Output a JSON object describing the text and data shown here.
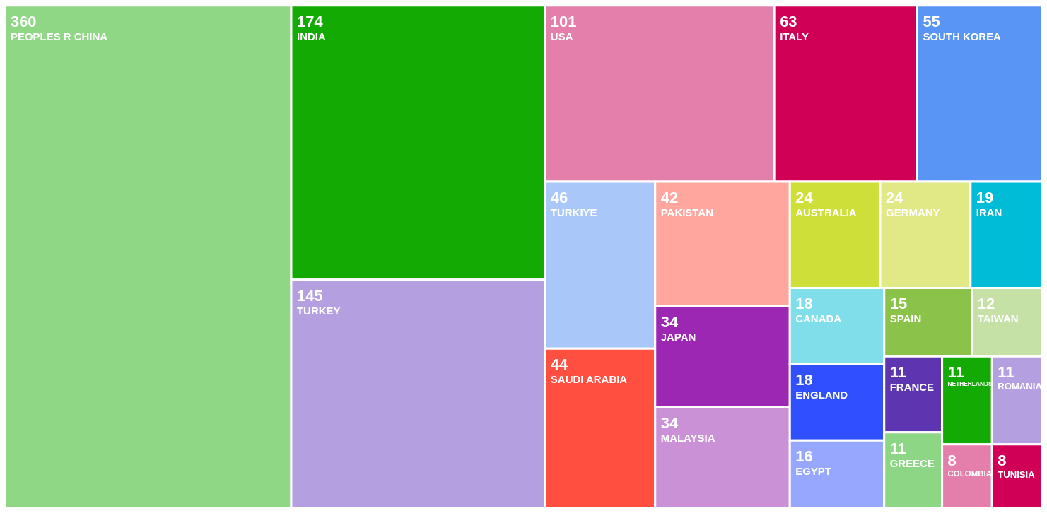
{
  "chart_data": {
    "type": "other",
    "categories": [
      "PEOPLES R CHINA",
      "INDIA",
      "TURKEY",
      "USA",
      "ITALY",
      "SOUTH KOREA",
      "TURKIYE",
      "SAUDI ARABIA",
      "PAKISTAN",
      "JAPAN",
      "MALAYSIA",
      "AUSTRALIA",
      "GERMANY",
      "IRAN",
      "CANADA",
      "ENGLAND",
      "EGYPT",
      "SPAIN",
      "TAIWAN",
      "FRANCE",
      "GREECE",
      "NETHERLANDS",
      "ROMANIA",
      "COLOMBIA",
      "TUNISIA"
    ],
    "values": [
      360,
      174,
      145,
      101,
      63,
      55,
      46,
      44,
      42,
      34,
      34,
      24,
      24,
      19,
      18,
      18,
      16,
      15,
      12,
      11,
      11,
      11,
      11,
      8,
      8
    ],
    "colors": [
      "#8fd685",
      "#14aa04",
      "#b49fe0",
      "#e47fab",
      "#cf0056",
      "#5995f5",
      "#a9c8f9",
      "#ff4f40",
      "#ffa79e",
      "#9c27b3",
      "#cb91d6",
      "#cfdf39",
      "#e1e986",
      "#00bcd7",
      "#80deea",
      "#304ffe",
      "#97a7fd",
      "#8bc24a",
      "#c5e1a5",
      "#5e35b1",
      "#8cd685",
      "#14aa04",
      "#b49fe0",
      "#e47fab",
      "#cf0056"
    ],
    "data_labels": true
  }
}
